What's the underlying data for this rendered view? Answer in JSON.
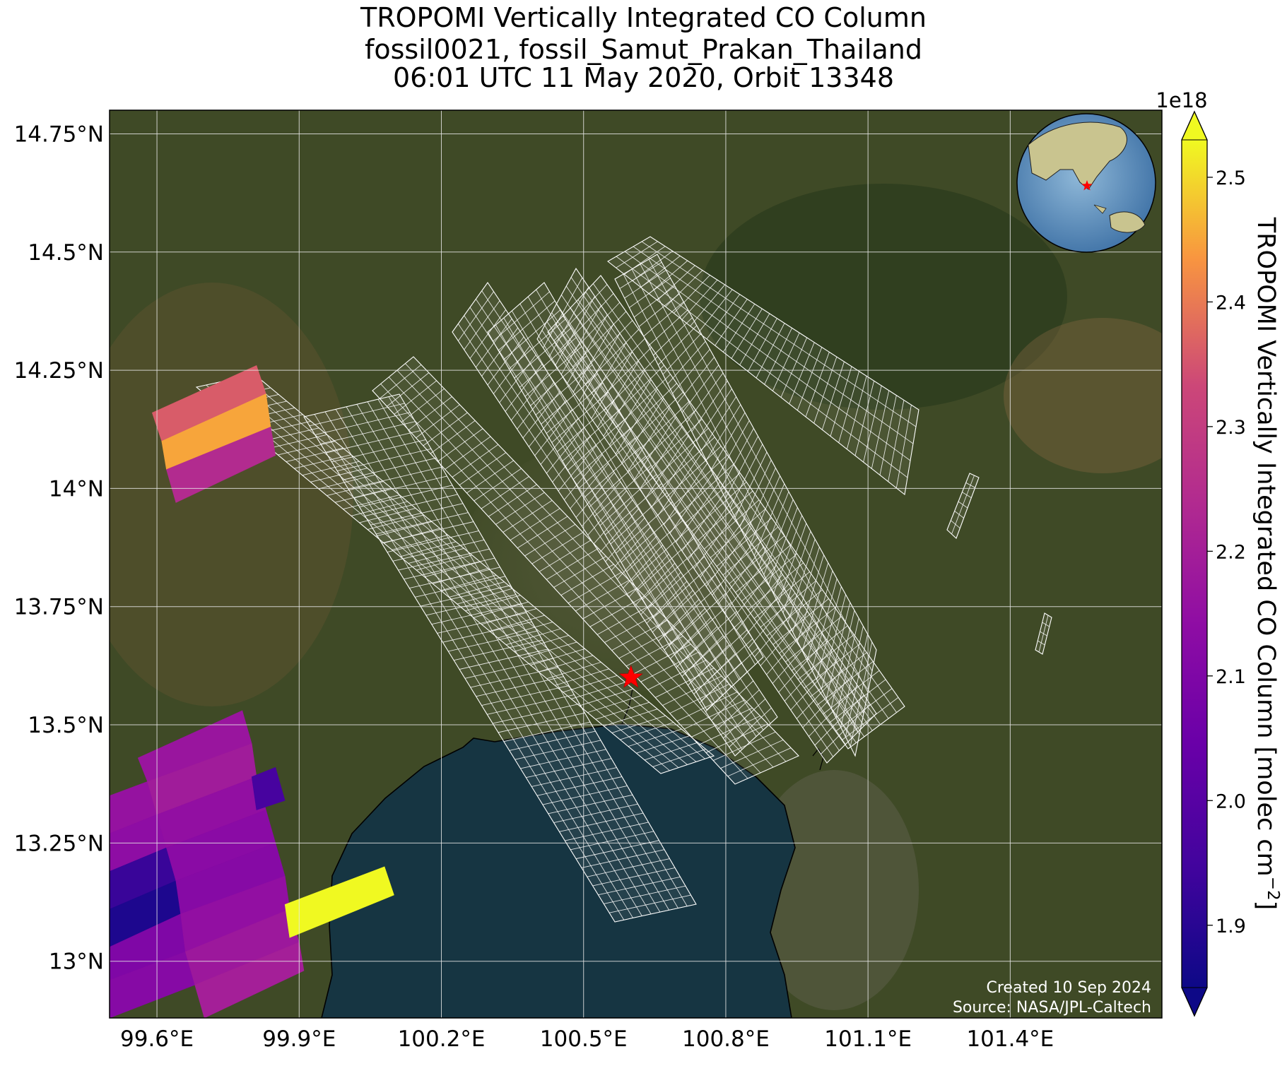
{
  "title": {
    "line1": "TROPOMI Vertically Integrated CO Column",
    "line2": "fossil0021, fossil_Samut_Prakan_Thailand",
    "line3": "06:01 UTC 11 May 2020, Orbit 13348"
  },
  "map": {
    "lon_ticks": [
      {
        "value": 99.6,
        "label": "99.6°E"
      },
      {
        "value": 99.9,
        "label": "99.9°E"
      },
      {
        "value": 100.2,
        "label": "100.2°E"
      },
      {
        "value": 100.5,
        "label": "100.5°E"
      },
      {
        "value": 100.8,
        "label": "100.8°E"
      },
      {
        "value": 101.1,
        "label": "101.1°E"
      },
      {
        "value": 101.4,
        "label": "101.4°E"
      }
    ],
    "lat_ticks": [
      {
        "value": 14.75,
        "label": "14.75°N"
      },
      {
        "value": 14.5,
        "label": "14.5°N"
      },
      {
        "value": 14.25,
        "label": "14.25°N"
      },
      {
        "value": 14.0,
        "label": "14°N"
      },
      {
        "value": 13.75,
        "label": "13.75°N"
      },
      {
        "value": 13.5,
        "label": "13.5°N"
      },
      {
        "value": 13.25,
        "label": "13.25°N"
      },
      {
        "value": 13.0,
        "label": "13°N"
      }
    ],
    "lon_range": [
      99.5,
      101.72
    ],
    "lat_range": [
      12.88,
      14.8
    ],
    "gridlines": true,
    "source_marker": {
      "lon": 100.6,
      "lat": 13.6,
      "color": "#ff0000",
      "icon": "star-icon"
    },
    "inset": "globe-icon",
    "credit_line1": "Created 10 Sep 2024",
    "credit_line2": "Source: NASA/JPL-Caltech",
    "colors": {
      "land": "#3f4a26",
      "sea": "#163542",
      "grid": "#e6e6e6",
      "footprint_outline": "#ffffff"
    }
  },
  "colorbar": {
    "label": "TROPOMI Vertically Integrated CO Column [molec cm",
    "label_sup": "−2",
    "label_end": "]",
    "exponent": "1e18",
    "min": 1.85,
    "max": 2.53,
    "ticks": [
      {
        "value": 1.9,
        "label": "1.9"
      },
      {
        "value": 2.0,
        "label": "2.0"
      },
      {
        "value": 2.1,
        "label": "2.1"
      },
      {
        "value": 2.2,
        "label": "2.2"
      },
      {
        "value": 2.3,
        "label": "2.3"
      },
      {
        "value": 2.4,
        "label": "2.4"
      },
      {
        "value": 2.5,
        "label": "2.5"
      }
    ],
    "colormap": "plasma",
    "extend": "both"
  },
  "chart_data": {
    "type": "heatmap",
    "title": "TROPOMI Vertically Integrated CO Column",
    "units": "molec cm−2 (×1e18)",
    "pixels": [
      {
        "value": 2.36,
        "corners": [
          [
            99.59,
            14.16
          ],
          [
            99.81,
            14.26
          ],
          [
            99.83,
            14.2
          ],
          [
            99.61,
            14.1
          ]
        ]
      },
      {
        "value": 2.45,
        "corners": [
          [
            99.61,
            14.1
          ],
          [
            99.83,
            14.2
          ],
          [
            99.84,
            14.13
          ],
          [
            99.62,
            14.04
          ]
        ]
      },
      {
        "value": 2.24,
        "corners": [
          [
            99.62,
            14.04
          ],
          [
            99.84,
            14.13
          ],
          [
            99.85,
            14.07
          ],
          [
            99.64,
            13.97
          ]
        ]
      },
      {
        "value": 2.16,
        "corners": [
          [
            99.5,
            13.35
          ],
          [
            99.58,
            13.38
          ],
          [
            99.6,
            13.31
          ],
          [
            99.5,
            13.27
          ]
        ]
      },
      {
        "value": 2.14,
        "corners": [
          [
            99.5,
            13.27
          ],
          [
            99.6,
            13.31
          ],
          [
            99.62,
            13.24
          ],
          [
            99.5,
            13.19
          ]
        ]
      },
      {
        "value": 1.93,
        "corners": [
          [
            99.5,
            13.19
          ],
          [
            99.62,
            13.24
          ],
          [
            99.64,
            13.17
          ],
          [
            99.5,
            13.11
          ]
        ]
      },
      {
        "value": 1.88,
        "corners": [
          [
            99.5,
            13.11
          ],
          [
            99.64,
            13.17
          ],
          [
            99.65,
            13.1
          ],
          [
            99.5,
            13.03
          ]
        ]
      },
      {
        "value": 2.1,
        "corners": [
          [
            99.5,
            13.03
          ],
          [
            99.65,
            13.1
          ],
          [
            99.66,
            13.02
          ],
          [
            99.5,
            12.96
          ]
        ]
      },
      {
        "value": 2.12,
        "corners": [
          [
            99.5,
            12.96
          ],
          [
            99.66,
            13.02
          ],
          [
            99.68,
            12.95
          ],
          [
            99.5,
            12.88
          ]
        ]
      },
      {
        "value": 2.17,
        "corners": [
          [
            99.56,
            13.43
          ],
          [
            99.78,
            13.53
          ],
          [
            99.8,
            13.46
          ],
          [
            99.58,
            13.38
          ]
        ]
      },
      {
        "value": 2.19,
        "corners": [
          [
            99.58,
            13.38
          ],
          [
            99.8,
            13.46
          ],
          [
            99.81,
            13.39
          ],
          [
            99.6,
            13.31
          ]
        ]
      },
      {
        "value": 2.15,
        "corners": [
          [
            99.6,
            13.31
          ],
          [
            99.81,
            13.39
          ],
          [
            99.83,
            13.32
          ],
          [
            99.62,
            13.24
          ]
        ]
      },
      {
        "value": 2.13,
        "corners": [
          [
            99.62,
            13.24
          ],
          [
            99.83,
            13.32
          ],
          [
            99.85,
            13.25
          ],
          [
            99.64,
            13.17
          ]
        ]
      },
      {
        "value": 2.12,
        "corners": [
          [
            99.64,
            13.17
          ],
          [
            99.85,
            13.25
          ],
          [
            99.87,
            13.18
          ],
          [
            99.65,
            13.1
          ]
        ]
      },
      {
        "value": 2.15,
        "corners": [
          [
            99.65,
            13.1
          ],
          [
            99.87,
            13.18
          ],
          [
            99.88,
            13.11
          ],
          [
            99.66,
            13.02
          ]
        ]
      },
      {
        "value": 2.18,
        "corners": [
          [
            99.66,
            13.02
          ],
          [
            99.88,
            13.11
          ],
          [
            99.9,
            13.04
          ],
          [
            99.68,
            12.95
          ]
        ]
      },
      {
        "value": 2.2,
        "corners": [
          [
            99.68,
            12.95
          ],
          [
            99.9,
            13.04
          ],
          [
            99.91,
            12.98
          ],
          [
            99.7,
            12.88
          ]
        ]
      },
      {
        "value": 1.96,
        "corners": [
          [
            99.8,
            13.39
          ],
          [
            99.85,
            13.41
          ],
          [
            99.87,
            13.34
          ],
          [
            99.81,
            13.32
          ]
        ]
      },
      {
        "value": 2.53,
        "corners": [
          [
            99.87,
            13.12
          ],
          [
            100.08,
            13.2
          ],
          [
            100.1,
            13.14
          ],
          [
            99.88,
            13.05
          ]
        ]
      }
    ]
  }
}
